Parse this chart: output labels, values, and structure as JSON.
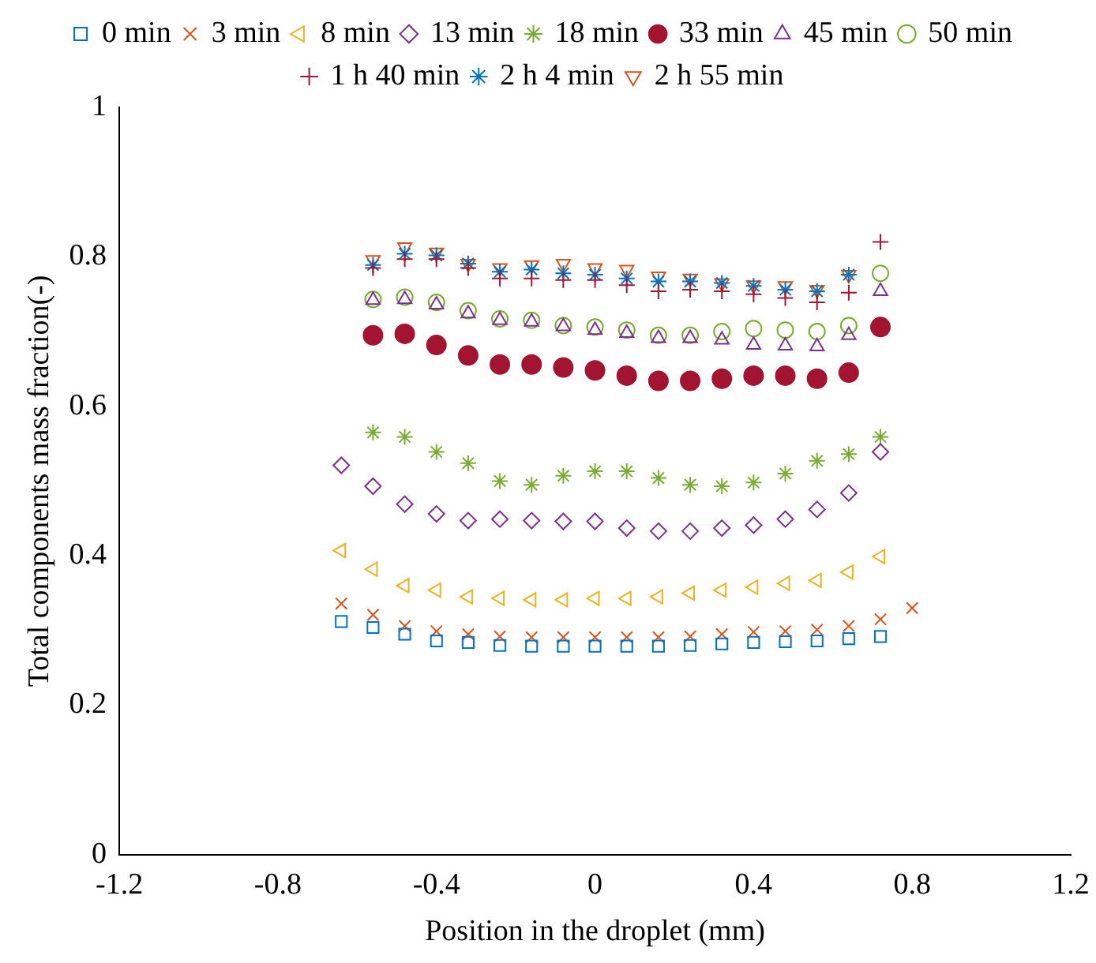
{
  "chart_data": {
    "type": "scatter",
    "xlabel": "Position in the droplet (mm)",
    "ylabel": "Total components mass fraction(-)",
    "xlim": [
      -1.2,
      1.2
    ],
    "xticks": [
      -1.2,
      -0.8,
      -0.4,
      0,
      0.4,
      0.8,
      1.2
    ],
    "ylim": [
      0,
      1
    ],
    "yticks": [
      0,
      0.2,
      0.4,
      0.6,
      0.8,
      1
    ],
    "grid": false,
    "legend": "top",
    "series": [
      {
        "name": "0 min",
        "color": "#0072bd",
        "marker": "square",
        "x": [
          -0.64,
          -0.56,
          -0.48,
          -0.4,
          -0.32,
          -0.24,
          -0.16,
          -0.08,
          0,
          0.08,
          0.16,
          0.24,
          0.32,
          0.4,
          0.48,
          0.56,
          0.64,
          0.72
        ],
        "values": [
          0.312,
          0.304,
          0.295,
          0.286,
          0.284,
          0.28,
          0.279,
          0.279,
          0.279,
          0.279,
          0.279,
          0.28,
          0.282,
          0.284,
          0.285,
          0.286,
          0.289,
          0.292
        ]
      },
      {
        "name": "3 min",
        "color": "#d95319",
        "marker": "x",
        "x": [
          -0.64,
          -0.56,
          -0.48,
          -0.4,
          -0.32,
          -0.24,
          -0.16,
          -0.08,
          0,
          0.08,
          0.16,
          0.24,
          0.32,
          0.4,
          0.48,
          0.56,
          0.64,
          0.72,
          0.8
        ],
        "values": [
          0.336,
          0.321,
          0.306,
          0.299,
          0.295,
          0.292,
          0.291,
          0.291,
          0.291,
          0.291,
          0.291,
          0.292,
          0.295,
          0.298,
          0.299,
          0.301,
          0.306,
          0.315,
          0.33
        ]
      },
      {
        "name": "8 min",
        "color": "#edb120",
        "marker": "triangle-left",
        "x": [
          -0.64,
          -0.56,
          -0.48,
          -0.4,
          -0.32,
          -0.24,
          -0.16,
          -0.08,
          0,
          0.08,
          0.16,
          0.24,
          0.32,
          0.4,
          0.48,
          0.56,
          0.64,
          0.72
        ],
        "values": [
          0.407,
          0.382,
          0.36,
          0.354,
          0.345,
          0.343,
          0.341,
          0.341,
          0.343,
          0.343,
          0.345,
          0.35,
          0.354,
          0.358,
          0.363,
          0.367,
          0.378,
          0.399
        ]
      },
      {
        "name": "13 min",
        "color": "#7e2f8e",
        "marker": "diamond",
        "x": [
          -0.64,
          -0.56,
          -0.48,
          -0.4,
          -0.32,
          -0.24,
          -0.16,
          -0.08,
          0,
          0.08,
          0.16,
          0.24,
          0.32,
          0.4,
          0.48,
          0.56,
          0.64,
          0.72
        ],
        "values": [
          0.521,
          0.493,
          0.469,
          0.456,
          0.447,
          0.449,
          0.447,
          0.446,
          0.446,
          0.437,
          0.433,
          0.433,
          0.437,
          0.441,
          0.449,
          0.462,
          0.484,
          0.539
        ]
      },
      {
        "name": "18 min",
        "color": "#77ac30",
        "marker": "cross",
        "x": [
          -0.56,
          -0.48,
          -0.4,
          -0.32,
          -0.24,
          -0.16,
          -0.08,
          0,
          0.08,
          0.16,
          0.24,
          0.32,
          0.4,
          0.48,
          0.56,
          0.64,
          0.72
        ],
        "values": [
          0.565,
          0.559,
          0.539,
          0.524,
          0.5,
          0.495,
          0.507,
          0.513,
          0.513,
          0.504,
          0.495,
          0.493,
          0.498,
          0.51,
          0.527,
          0.536,
          0.559
        ]
      },
      {
        "name": "33 min",
        "color": "#a2142f",
        "marker": "filled-circle",
        "x": [
          -0.56,
          -0.48,
          -0.4,
          -0.32,
          -0.24,
          -0.16,
          -0.08,
          0,
          0.08,
          0.16,
          0.24,
          0.32,
          0.4,
          0.48,
          0.56,
          0.64,
          0.72
        ],
        "values": [
          0.695,
          0.697,
          0.682,
          0.668,
          0.656,
          0.656,
          0.652,
          0.648,
          0.641,
          0.634,
          0.634,
          0.637,
          0.641,
          0.641,
          0.637,
          0.645,
          0.706
        ]
      },
      {
        "name": "45 min",
        "color": "#7e2f8e",
        "marker": "triangle",
        "x": [
          -0.56,
          -0.48,
          -0.4,
          -0.32,
          -0.24,
          -0.16,
          -0.08,
          0,
          0.08,
          0.16,
          0.24,
          0.32,
          0.4,
          0.48,
          0.56,
          0.64,
          0.72
        ],
        "values": [
          0.742,
          0.743,
          0.736,
          0.724,
          0.715,
          0.713,
          0.707,
          0.702,
          0.698,
          0.691,
          0.691,
          0.689,
          0.682,
          0.681,
          0.68,
          0.695,
          0.754
        ]
      },
      {
        "name": "50 min",
        "color": "#77ac30",
        "marker": "circle",
        "x": [
          -0.56,
          -0.48,
          -0.4,
          -0.32,
          -0.24,
          -0.16,
          -0.08,
          0,
          0.08,
          0.16,
          0.24,
          0.32,
          0.4,
          0.48,
          0.56,
          0.64,
          0.72
        ],
        "values": [
          0.743,
          0.746,
          0.739,
          0.728,
          0.717,
          0.715,
          0.708,
          0.706,
          0.702,
          0.695,
          0.695,
          0.7,
          0.704,
          0.702,
          0.7,
          0.708,
          0.778
        ]
      },
      {
        "name": "1 h 40 min",
        "color": "#a2142f",
        "marker": "plus",
        "x": [
          -0.56,
          -0.48,
          -0.4,
          -0.32,
          -0.24,
          -0.16,
          -0.08,
          0,
          0.08,
          0.16,
          0.24,
          0.32,
          0.4,
          0.48,
          0.56,
          0.64,
          0.72
        ],
        "values": [
          0.785,
          0.797,
          0.797,
          0.785,
          0.771,
          0.771,
          0.769,
          0.769,
          0.762,
          0.754,
          0.756,
          0.754,
          0.75,
          0.745,
          0.739,
          0.752,
          0.82
        ]
      },
      {
        "name": "2 h 4 min",
        "color": "#0072bd",
        "marker": "cross",
        "x": [
          -0.56,
          -0.48,
          -0.4,
          -0.32,
          -0.24,
          -0.16,
          -0.08,
          0,
          0.08,
          0.16,
          0.24,
          0.32,
          0.4,
          0.48,
          0.56,
          0.64
        ],
        "values": [
          0.789,
          0.804,
          0.802,
          0.791,
          0.78,
          0.783,
          0.778,
          0.776,
          0.771,
          0.767,
          0.767,
          0.765,
          0.761,
          0.756,
          0.754,
          0.776
        ]
      },
      {
        "name": "2 h 55 min",
        "color": "#d95319",
        "marker": "triangle-down",
        "x": [
          -0.56,
          -0.48,
          -0.4,
          -0.32,
          -0.24,
          -0.16,
          -0.08,
          0,
          0.08,
          0.16,
          0.24,
          0.32,
          0.4,
          0.48,
          0.56,
          0.64
        ],
        "values": [
          0.796,
          0.813,
          0.806,
          0.791,
          0.785,
          0.789,
          0.791,
          0.785,
          0.783,
          0.774,
          0.771,
          0.765,
          0.762,
          0.761,
          0.756,
          0.776
        ]
      }
    ]
  }
}
